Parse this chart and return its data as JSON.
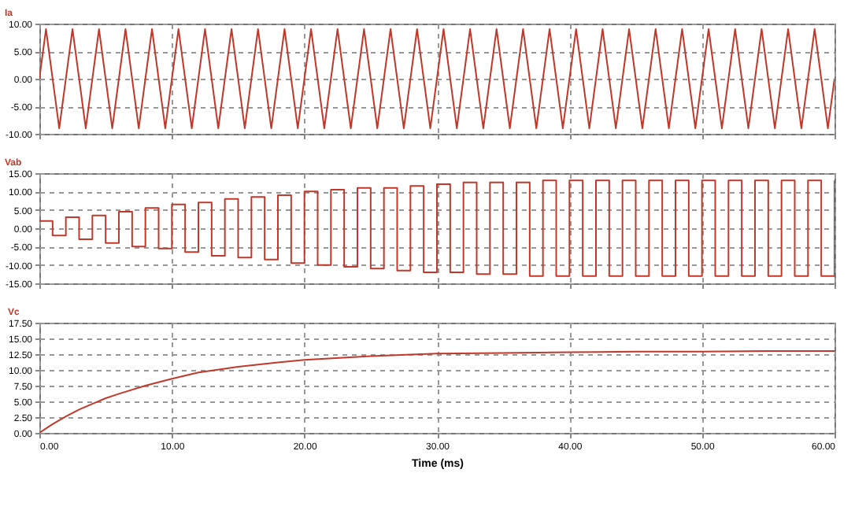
{
  "chart_data": [
    {
      "type": "line",
      "title": "Ia",
      "x": [
        0,
        0.5,
        1,
        1.5,
        2,
        2.5,
        3,
        3.5,
        4,
        4.5,
        5,
        5.5,
        6,
        6.5,
        7,
        7.5,
        8,
        8.5,
        9,
        9.5,
        10,
        10.5,
        11,
        11.5,
        12,
        12.5,
        13,
        13.5,
        14,
        14.5,
        15,
        15.5,
        16,
        16.5,
        17,
        17.5,
        18,
        18.5,
        19,
        19.5,
        20,
        20.5,
        21,
        21.5,
        22,
        22.5,
        23,
        23.5,
        24,
        24.5,
        25,
        25.5,
        26,
        26.5,
        27,
        27.5,
        28,
        28.5,
        29,
        29.5,
        30,
        30.5,
        31,
        31.5,
        32,
        32.5,
        33,
        33.5,
        34,
        34.5,
        35,
        35.5,
        36,
        36.5,
        37,
        37.5,
        38,
        38.5,
        39,
        39.5,
        40,
        40.5,
        41,
        41.5,
        42,
        42.5,
        43,
        43.5,
        44,
        44.5,
        45,
        45.5,
        46,
        46.5,
        47,
        47.5,
        48,
        48.5,
        49,
        49.5,
        50,
        50.5,
        51,
        51.5,
        52,
        52.5,
        53,
        53.5,
        54,
        54.5,
        55,
        55.5,
        56,
        56.5,
        57,
        57.5,
        58,
        58.5,
        59,
        59.5,
        60
      ],
      "series": [
        {
          "color": "#c0392b",
          "values": [
            0,
            9,
            0,
            -9,
            0,
            9,
            0,
            -9,
            0,
            9,
            0,
            -9,
            0,
            9,
            0,
            -9,
            0,
            9,
            0,
            -9,
            0,
            9,
            0,
            -9,
            0,
            9,
            0,
            -9,
            0,
            9,
            0,
            -9,
            0,
            9,
            0,
            -9,
            0,
            9,
            0,
            -9,
            0,
            9,
            0,
            -9,
            0,
            9,
            0,
            -9,
            0,
            9,
            0,
            -9,
            0,
            9,
            0,
            -9,
            0,
            9,
            0,
            -9,
            0,
            9,
            0,
            -9,
            0,
            9,
            0,
            -9,
            0,
            9,
            0,
            -9,
            0,
            9,
            0,
            -9,
            0,
            9,
            0,
            -9,
            0,
            9,
            0,
            -9,
            0,
            9,
            0,
            -9,
            0,
            9,
            0,
            -9,
            0,
            9,
            0,
            -9,
            0,
            9,
            0,
            -9,
            0,
            9,
            0,
            -9,
            0,
            9,
            0,
            -9,
            0,
            9,
            0,
            -9,
            0,
            9,
            0,
            -9,
            0,
            9,
            0,
            -9,
            0
          ]
        }
      ],
      "xlim": [
        0,
        60
      ],
      "xticks": [
        {
          "value": 0,
          "label": null
        },
        {
          "value": 10,
          "label": null
        },
        {
          "value": 20,
          "label": null
        },
        {
          "value": 30,
          "label": null
        },
        {
          "value": 40,
          "label": null
        },
        {
          "value": 50,
          "label": null
        },
        {
          "value": 60,
          "label": null
        }
      ],
      "ylim": [
        -10,
        10
      ],
      "yticks": [
        {
          "value": -10,
          "label": "-10.00"
        },
        {
          "value": -5,
          "label": "-5.00"
        },
        {
          "value": 0,
          "label": "0.00"
        },
        {
          "value": 5,
          "label": "5.00"
        },
        {
          "value": 10,
          "label": "10.00"
        }
      ],
      "grid": true,
      "tick_labels": "y"
    },
    {
      "type": "step",
      "title": "Vab",
      "x": [
        0,
        1,
        2,
        3,
        4,
        5,
        6,
        7,
        8,
        9,
        10,
        11,
        12,
        13,
        14,
        15,
        16,
        17,
        18,
        19,
        20,
        21,
        22,
        23,
        24,
        25,
        26,
        27,
        28,
        29,
        30,
        31,
        32,
        33,
        34,
        35,
        36,
        37,
        38,
        39,
        40,
        41,
        42,
        43,
        44,
        45,
        46,
        47,
        48,
        49,
        50,
        51,
        52,
        53,
        54,
        55,
        56,
        57,
        58,
        59,
        60
      ],
      "series": [
        {
          "color": "#c0392b",
          "values": [
            2,
            -2,
            3,
            -3,
            3.5,
            -4,
            4.5,
            -5,
            5.5,
            -5.5,
            6.5,
            -6.5,
            7,
            -7.5,
            8,
            -8,
            8.5,
            -8.5,
            9,
            -9.5,
            10,
            -10,
            10.5,
            -10.5,
            11,
            -11,
            11,
            -11.5,
            11.5,
            -12,
            12,
            -12,
            12.5,
            -12.5,
            12.5,
            -12.5,
            12.5,
            -13,
            13,
            -13,
            13,
            -13,
            13,
            -13,
            13,
            -13,
            13,
            -13,
            13,
            -13,
            13,
            -13,
            13,
            -13,
            13,
            -13,
            13,
            -13,
            13,
            -13,
            13
          ]
        }
      ],
      "xlim": [
        0,
        60
      ],
      "xticks": [
        {
          "value": 0,
          "label": null
        },
        {
          "value": 10,
          "label": null
        },
        {
          "value": 20,
          "label": null
        },
        {
          "value": 30,
          "label": null
        },
        {
          "value": 40,
          "label": null
        },
        {
          "value": 50,
          "label": null
        },
        {
          "value": 60,
          "label": null
        }
      ],
      "ylim": [
        -15,
        15
      ],
      "yticks": [
        {
          "value": -15,
          "label": "-15.00"
        },
        {
          "value": -10,
          "label": "-10.00"
        },
        {
          "value": -5,
          "label": "-5.00"
        },
        {
          "value": 0,
          "label": "0.00"
        },
        {
          "value": 5,
          "label": "5.00"
        },
        {
          "value": 10,
          "label": "10.00"
        },
        {
          "value": 15,
          "label": "15.00"
        }
      ],
      "grid": true,
      "tick_labels": "y"
    },
    {
      "type": "line",
      "title": "Vc",
      "xlabel": "Time (ms)",
      "x": [
        0,
        1,
        2,
        3,
        4,
        5,
        6,
        8,
        10,
        12,
        15,
        18,
        20,
        25,
        30,
        35,
        40,
        45,
        50,
        55,
        60
      ],
      "series": [
        {
          "color": "#c0392b",
          "values": [
            0,
            1.4,
            2.6,
            3.7,
            4.6,
            5.5,
            6.2,
            7.5,
            8.6,
            9.6,
            10.5,
            11.2,
            11.6,
            12.2,
            12.6,
            12.7,
            12.8,
            12.9,
            12.9,
            13,
            13
          ]
        }
      ],
      "xlim": [
        0,
        60
      ],
      "xticks": [
        {
          "value": 0,
          "label": "0.00"
        },
        {
          "value": 10,
          "label": "10.00"
        },
        {
          "value": 20,
          "label": "20.00"
        },
        {
          "value": 30,
          "label": "30.00"
        },
        {
          "value": 40,
          "label": "40.00"
        },
        {
          "value": 50,
          "label": "50.00"
        },
        {
          "value": 60,
          "label": "60.00"
        }
      ],
      "ylim": [
        0,
        17.5
      ],
      "yticks": [
        {
          "value": 0,
          "label": "0.00"
        },
        {
          "value": 2.5,
          "label": "2.50"
        },
        {
          "value": 5,
          "label": "5.00"
        },
        {
          "value": 7.5,
          "label": "7.50"
        },
        {
          "value": 10,
          "label": "10.00"
        },
        {
          "value": 12.5,
          "label": "12.50"
        },
        {
          "value": 15,
          "label": "15.00"
        },
        {
          "value": 17.5,
          "label": "17.50"
        }
      ],
      "grid": true
    }
  ]
}
